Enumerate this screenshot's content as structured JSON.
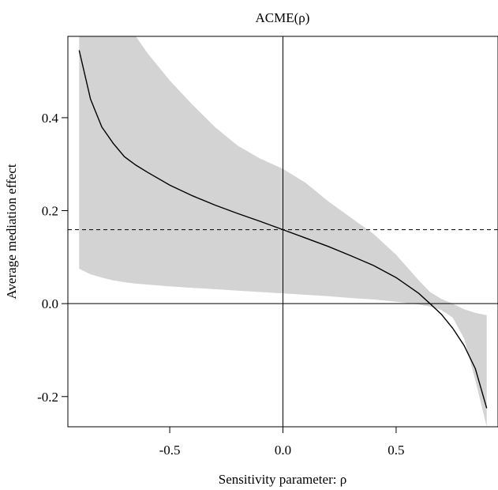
{
  "chart_data": {
    "type": "line",
    "title": "ACME(ρ)",
    "xlabel": "Sensitivity parameter: ρ",
    "ylabel": "Average mediation effect",
    "xlim": [
      -0.95,
      0.95
    ],
    "ylim": [
      -0.265,
      0.575
    ],
    "x_ticks": [
      -0.5,
      0.0,
      0.5
    ],
    "x_tick_labels": [
      "-0.5",
      "0.0",
      "0.5"
    ],
    "y_ticks": [
      -0.2,
      0.0,
      0.2,
      0.4
    ],
    "y_tick_labels": [
      "-0.2",
      "0.0",
      "0.2",
      "0.4"
    ],
    "grid": false,
    "reference_lines": {
      "vertical_solid_x": 0.0,
      "horizontal_solid_y": 0.0,
      "horizontal_dashed_y": 0.159
    },
    "series": [
      {
        "x": [
          -0.9,
          -0.85,
          -0.8,
          -0.75,
          -0.7,
          -0.65,
          -0.6,
          -0.5,
          -0.4,
          -0.3,
          -0.2,
          -0.1,
          0.0,
          0.1,
          0.2,
          0.3,
          0.4,
          0.5,
          0.6,
          0.65,
          0.7,
          0.75,
          0.8,
          0.85,
          0.9
        ],
        "values": [
          0.545,
          0.44,
          0.38,
          0.345,
          0.316,
          0.298,
          0.283,
          0.255,
          0.232,
          0.212,
          0.194,
          0.177,
          0.159,
          0.141,
          0.123,
          0.103,
          0.082,
          0.056,
          0.022,
          0.0,
          -0.023,
          -0.053,
          -0.09,
          -0.14,
          -0.225
        ],
        "ci_lower": [
          0.075,
          0.063,
          0.056,
          0.05,
          0.046,
          0.043,
          0.041,
          0.037,
          0.034,
          0.031,
          0.028,
          0.025,
          0.022,
          0.019,
          0.016,
          0.012,
          0.009,
          0.004,
          -0.002,
          -0.006,
          -0.014,
          -0.03,
          -0.075,
          -0.165,
          -0.265
        ],
        "ci_upper": [
          0.575,
          0.575,
          0.575,
          0.575,
          0.575,
          0.575,
          0.54,
          0.48,
          0.428,
          0.38,
          0.34,
          0.312,
          0.29,
          0.26,
          0.22,
          0.185,
          0.15,
          0.105,
          0.05,
          0.025,
          0.01,
          0.0,
          -0.012,
          -0.02,
          -0.025
        ]
      }
    ]
  }
}
